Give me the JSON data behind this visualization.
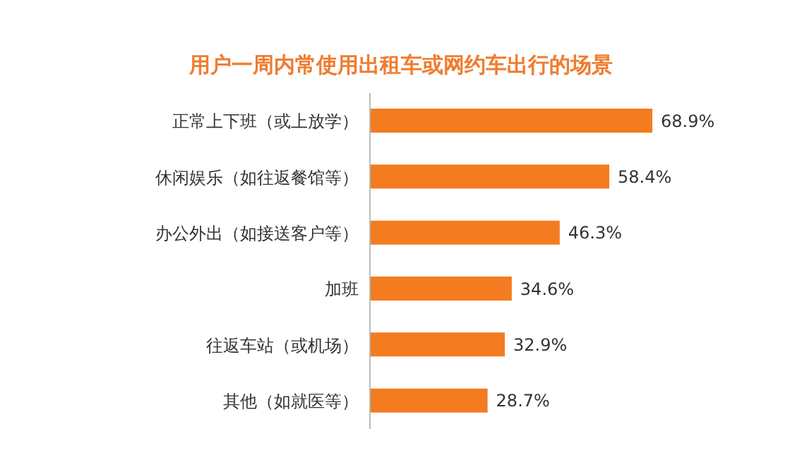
{
  "chart_data": {
    "type": "bar",
    "orientation": "horizontal",
    "title": "用户一周内常使用出租车或网约车出行的场景",
    "categories": [
      "正常上下班（或上放学）",
      "休闲娱乐（如往返餐馆等）",
      "办公外出（如接送客户等）",
      "加班",
      "往返车站（或机场）",
      "其他（如就医等）"
    ],
    "values": [
      68.9,
      58.4,
      46.3,
      34.6,
      32.9,
      28.7
    ],
    "value_labels": [
      "68.9%",
      "58.4%",
      "46.3%",
      "34.6%",
      "32.9%",
      "28.7%"
    ],
    "color": "#f47b20"
  }
}
